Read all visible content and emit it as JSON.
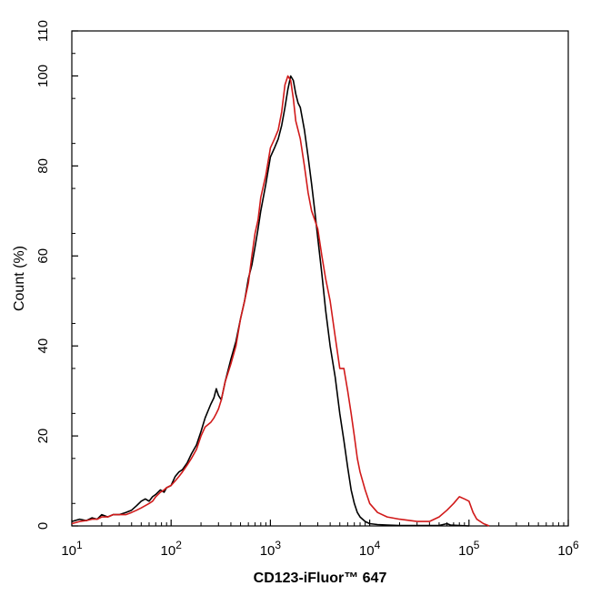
{
  "chart_data": {
    "type": "line",
    "xlabel": "CD123-iFluor™ 647",
    "ylabel": "Count  (%)",
    "xscale": "log",
    "xlim": [
      10,
      1000000
    ],
    "ylim": [
      0,
      110
    ],
    "x_ticks": [
      {
        "value": 10,
        "base": "10",
        "exp": "1"
      },
      {
        "value": 100,
        "base": "10",
        "exp": "2"
      },
      {
        "value": 1000,
        "base": "10",
        "exp": "3"
      },
      {
        "value": 10000,
        "base": "10",
        "exp": "4"
      },
      {
        "value": 100000,
        "base": "10",
        "exp": "5"
      },
      {
        "value": 1000000,
        "base": "10",
        "exp": "6"
      }
    ],
    "y_ticks": [
      "0",
      "20",
      "40",
      "60",
      "80",
      "100",
      "110"
    ],
    "grid": false,
    "legend": "none",
    "series": [
      {
        "color": "#000000",
        "points": [
          [
            10,
            1.0
          ],
          [
            12,
            1.5
          ],
          [
            14,
            1.2
          ],
          [
            16,
            1.8
          ],
          [
            18,
            1.5
          ],
          [
            20,
            2.5
          ],
          [
            23,
            2.0
          ],
          [
            26,
            2.5
          ],
          [
            30,
            2.5
          ],
          [
            35,
            3.0
          ],
          [
            40,
            3.5
          ],
          [
            45,
            4.5
          ],
          [
            50,
            5.5
          ],
          [
            55,
            6.0
          ],
          [
            60,
            5.5
          ],
          [
            65,
            6.5
          ],
          [
            70,
            7.0
          ],
          [
            78,
            8.0
          ],
          [
            85,
            7.5
          ],
          [
            90,
            8.5
          ],
          [
            100,
            9.0
          ],
          [
            110,
            11.0
          ],
          [
            120,
            12.0
          ],
          [
            130,
            12.5
          ],
          [
            145,
            14.0
          ],
          [
            160,
            16.0
          ],
          [
            180,
            18.0
          ],
          [
            200,
            21.0
          ],
          [
            220,
            24.0
          ],
          [
            250,
            27.0
          ],
          [
            270,
            28.5
          ],
          [
            285,
            30.5
          ],
          [
            300,
            29.0
          ],
          [
            320,
            28.0
          ],
          [
            350,
            32.0
          ],
          [
            400,
            37.0
          ],
          [
            450,
            41.0
          ],
          [
            500,
            46.0
          ],
          [
            550,
            50.0
          ],
          [
            600,
            55.0
          ],
          [
            650,
            58.0
          ],
          [
            700,
            62.0
          ],
          [
            750,
            66.0
          ],
          [
            800,
            70.0
          ],
          [
            900,
            76.0
          ],
          [
            1000,
            82.0
          ],
          [
            1100,
            84.0
          ],
          [
            1200,
            86.0
          ],
          [
            1300,
            89.0
          ],
          [
            1400,
            93.0
          ],
          [
            1500,
            97.0
          ],
          [
            1600,
            100.0
          ],
          [
            1700,
            99.0
          ],
          [
            1800,
            96.0
          ],
          [
            1900,
            94.0
          ],
          [
            2000,
            93.0
          ],
          [
            2200,
            88.0
          ],
          [
            2400,
            82.0
          ],
          [
            2600,
            76.0
          ],
          [
            2800,
            70.0
          ],
          [
            3000,
            64.0
          ],
          [
            3300,
            56.0
          ],
          [
            3600,
            48.0
          ],
          [
            4000,
            40.0
          ],
          [
            4500,
            33.0
          ],
          [
            5000,
            25.0
          ],
          [
            5500,
            19.0
          ],
          [
            6000,
            13.0
          ],
          [
            6500,
            8.0
          ],
          [
            7000,
            5.0
          ],
          [
            7500,
            3.0
          ],
          [
            8000,
            2.0
          ],
          [
            9000,
            1.0
          ],
          [
            10000,
            0.5
          ],
          [
            12000,
            0.3
          ],
          [
            15000,
            0.2
          ],
          [
            20000,
            0.1
          ],
          [
            30000,
            0.1
          ],
          [
            50000,
            0.1
          ],
          [
            60000,
            0.5
          ],
          [
            65000,
            0.2
          ],
          [
            80000,
            0.1
          ],
          [
            100000,
            0.0
          ]
        ]
      },
      {
        "color": "#d11a1a",
        "points": [
          [
            10,
            0.5
          ],
          [
            12,
            1.0
          ],
          [
            14,
            1.2
          ],
          [
            16,
            1.5
          ],
          [
            18,
            1.5
          ],
          [
            20,
            2.0
          ],
          [
            23,
            2.0
          ],
          [
            26,
            2.5
          ],
          [
            30,
            2.5
          ],
          [
            35,
            2.5
          ],
          [
            40,
            3.0
          ],
          [
            45,
            3.5
          ],
          [
            50,
            4.0
          ],
          [
            55,
            4.5
          ],
          [
            60,
            5.0
          ],
          [
            65,
            5.5
          ],
          [
            70,
            6.5
          ],
          [
            78,
            7.5
          ],
          [
            85,
            8.0
          ],
          [
            90,
            8.5
          ],
          [
            100,
            9.0
          ],
          [
            110,
            10.0
          ],
          [
            120,
            11.0
          ],
          [
            130,
            12.0
          ],
          [
            145,
            13.5
          ],
          [
            160,
            15.0
          ],
          [
            180,
            17.0
          ],
          [
            200,
            20.0
          ],
          [
            220,
            22.0
          ],
          [
            250,
            23.0
          ],
          [
            270,
            24.0
          ],
          [
            285,
            25.0
          ],
          [
            300,
            26.0
          ],
          [
            320,
            28.0
          ],
          [
            350,
            32.0
          ],
          [
            400,
            36.0
          ],
          [
            450,
            40.0
          ],
          [
            500,
            46.0
          ],
          [
            550,
            50.0
          ],
          [
            600,
            54.0
          ],
          [
            650,
            60.0
          ],
          [
            700,
            65.0
          ],
          [
            750,
            68.0
          ],
          [
            800,
            73.0
          ],
          [
            900,
            78.0
          ],
          [
            1000,
            84.0
          ],
          [
            1100,
            86.0
          ],
          [
            1200,
            88.0
          ],
          [
            1300,
            92.0
          ],
          [
            1400,
            98.0
          ],
          [
            1500,
            100.0
          ],
          [
            1600,
            99.0
          ],
          [
            1700,
            95.0
          ],
          [
            1800,
            90.0
          ],
          [
            1900,
            88.0
          ],
          [
            2000,
            86.0
          ],
          [
            2200,
            80.0
          ],
          [
            2400,
            74.0
          ],
          [
            2600,
            70.0
          ],
          [
            2800,
            68.0
          ],
          [
            3000,
            66.0
          ],
          [
            3300,
            60.0
          ],
          [
            3600,
            55.0
          ],
          [
            4000,
            50.0
          ],
          [
            4500,
            42.0
          ],
          [
            5000,
            35.0
          ],
          [
            5500,
            35.0
          ],
          [
            6000,
            30.0
          ],
          [
            6500,
            25.0
          ],
          [
            7000,
            20.0
          ],
          [
            7500,
            15.0
          ],
          [
            8000,
            12.0
          ],
          [
            9000,
            8.0
          ],
          [
            10000,
            5.0
          ],
          [
            12000,
            3.0
          ],
          [
            15000,
            2.0
          ],
          [
            20000,
            1.5
          ],
          [
            30000,
            1.0
          ],
          [
            40000,
            1.0
          ],
          [
            50000,
            2.0
          ],
          [
            60000,
            3.5
          ],
          [
            70000,
            5.0
          ],
          [
            80000,
            6.5
          ],
          [
            90000,
            6.0
          ],
          [
            100000,
            5.5
          ],
          [
            110000,
            3.0
          ],
          [
            120000,
            1.5
          ],
          [
            140000,
            0.5
          ],
          [
            160000,
            0.0
          ]
        ]
      }
    ]
  }
}
